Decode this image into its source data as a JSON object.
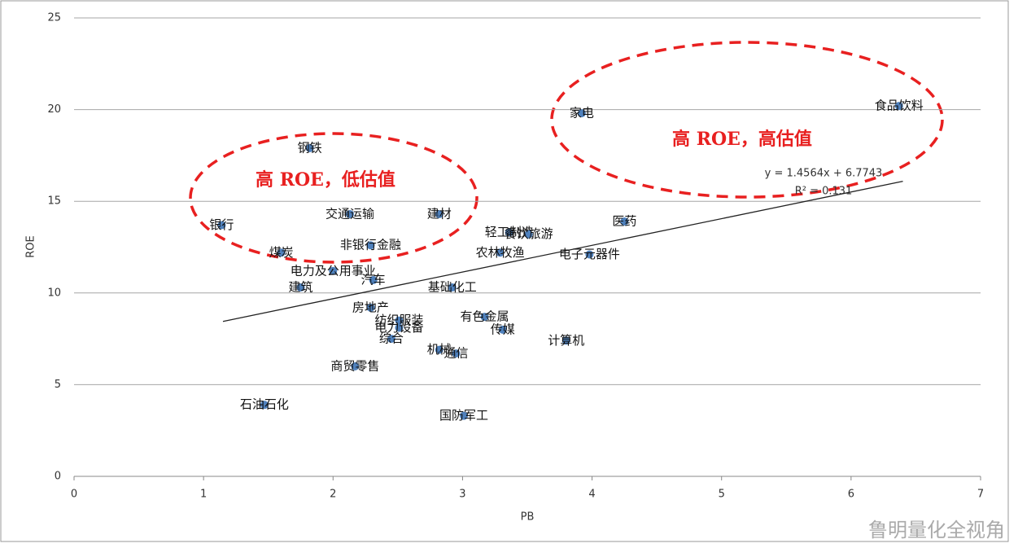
{
  "chart_data": {
    "type": "scatter",
    "x_label": "PB",
    "y_label": "ROE",
    "categories": [
      "银行",
      "钢铁",
      "煤炭",
      "交通运输",
      "建材",
      "非银行金融",
      "电力及公用事业",
      "汽车",
      "建筑",
      "基础化工",
      "房地产",
      "纺织服装",
      "电力设备",
      "综合",
      "商贸零售",
      "石油石化",
      "机械",
      "通信",
      "国防军工",
      "有色金属",
      "传媒",
      "计算机",
      "轻工制造",
      "餐饮旅游",
      "农林牧渔",
      "电子元器件",
      "医药",
      "家电",
      "食品饮料"
    ],
    "x": [
      1.14,
      1.82,
      1.6,
      2.13,
      2.82,
      2.29,
      2.0,
      2.31,
      1.75,
      2.92,
      2.29,
      2.51,
      2.51,
      2.45,
      2.17,
      1.47,
      2.82,
      2.95,
      3.01,
      3.17,
      3.31,
      3.8,
      3.36,
      3.51,
      3.29,
      3.98,
      4.25,
      3.92,
      6.37
    ],
    "values": [
      13.7,
      17.9,
      12.2,
      14.3,
      14.3,
      12.6,
      11.2,
      10.7,
      10.3,
      10.3,
      9.2,
      8.5,
      8.1,
      7.5,
      6.0,
      3.9,
      6.9,
      6.7,
      3.3,
      8.7,
      8.0,
      7.4,
      13.3,
      13.2,
      12.2,
      12.1,
      13.9,
      19.8,
      20.2
    ],
    "color": "#4f81bd",
    "xlim": [
      0,
      7
    ],
    "xticks": [
      0,
      1,
      2,
      3,
      4,
      5,
      6,
      7
    ],
    "ylim": [
      0,
      25
    ],
    "yticks": [
      0,
      5,
      10,
      15,
      20,
      25
    ],
    "grid": true,
    "trendline": {
      "equation": "y = 1.4564x + 6.7743",
      "r2": "R² = 0.131",
      "x": [
        1.15,
        6.4
      ],
      "y": [
        8.45,
        16.09
      ]
    },
    "annotations": [
      "高 ROE，低估值",
      "高 ROE，高估值"
    ],
    "watermark": "鲁明量化全视角"
  }
}
